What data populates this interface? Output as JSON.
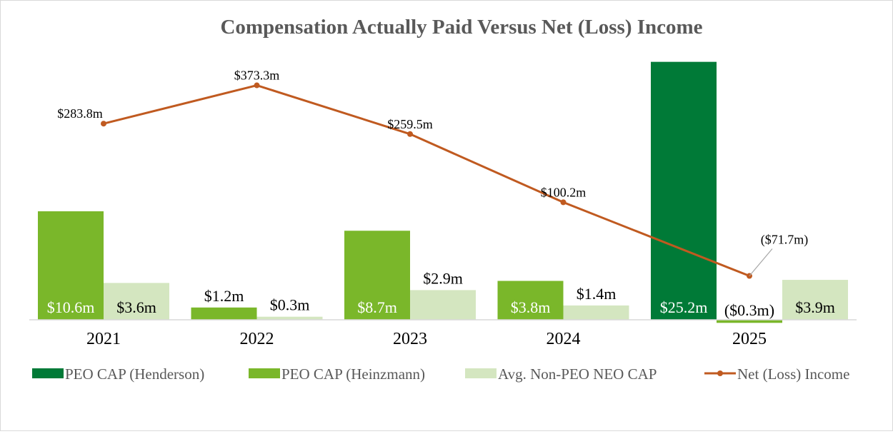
{
  "chart_data": {
    "type": "bar",
    "title": "Compensation Actually Paid Versus Net (Loss) Income",
    "categories": [
      "2021",
      "2022",
      "2023",
      "2024",
      "2025"
    ],
    "bar_units": "$m",
    "line_units": "$m",
    "series": [
      {
        "name": "PEO CAP (Henderson)",
        "kind": "bar",
        "color": "#007A37",
        "values": [
          null,
          null,
          null,
          null,
          25.2
        ],
        "labels": [
          "",
          "",
          "",
          "",
          "$25.2m"
        ]
      },
      {
        "name": "PEO CAP (Heinzmann)",
        "kind": "bar",
        "color": "#7AB72A",
        "values": [
          10.6,
          1.2,
          8.7,
          3.8,
          -0.3
        ],
        "labels": [
          "$10.6m",
          "$1.2m",
          "$8.7m",
          "$3.8m",
          "($0.3m)"
        ]
      },
      {
        "name": "Avg. Non-PEO NEO CAP",
        "kind": "bar",
        "color": "#D4E6C0",
        "values": [
          3.6,
          0.3,
          2.9,
          1.4,
          3.9
        ],
        "labels": [
          "$3.6m",
          "$0.3m",
          "$2.9m",
          "$1.4m",
          "$3.9m"
        ]
      },
      {
        "name": "Net (Loss) Income",
        "kind": "line",
        "color": "#C05A20",
        "values": [
          283.8,
          373.3,
          259.5,
          100.2,
          -71.7
        ],
        "labels": [
          "$283.8m",
          "$373.3m",
          "$259.5m",
          "$100.2m",
          "($71.7m)"
        ]
      }
    ],
    "legend": [
      "PEO CAP (Henderson)",
      "PEO CAP (Heinzmann)",
      "Avg. Non-PEO NEO CAP",
      "Net (Loss) Income"
    ],
    "legend_position": "bottom",
    "grid": false
  }
}
